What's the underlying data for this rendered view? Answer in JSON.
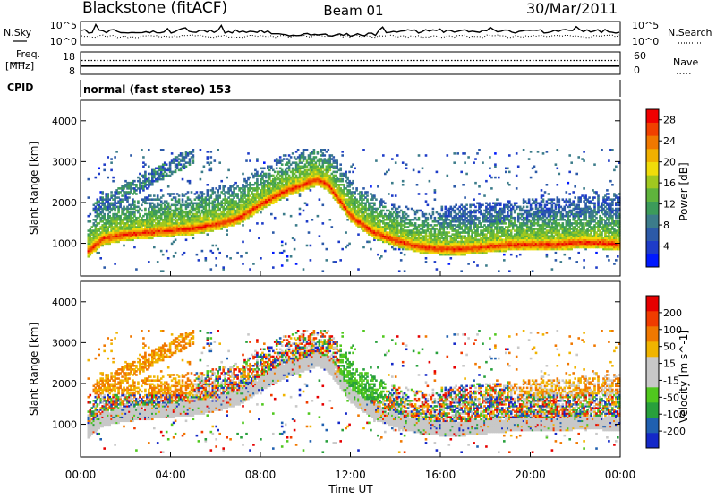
{
  "header": {
    "station": "Blackstone (fitACF)",
    "beam": "Beam 01",
    "date": "30/Mar/2011"
  },
  "noise_panel": {
    "left_label": "N.Sky",
    "right_label": "N.Search",
    "ticks": [
      "10^5",
      "10^0"
    ]
  },
  "freq_panel": {
    "left_label_1": "Freq.",
    "left_label_2": "[MHz]",
    "left_ticks": [
      "18",
      "8"
    ],
    "right_label": "Nave",
    "right_ticks": [
      "60",
      "0"
    ]
  },
  "cpid": {
    "label": "CPID",
    "value": "normal (fast stereo) 153"
  },
  "colors": {
    "power": [
      "#0019ff",
      "#1e3cc8",
      "#2c5aa8",
      "#3c7c8a",
      "#3c9b5a",
      "#5fb43c",
      "#a0c820",
      "#f0dc0a",
      "#f0b000",
      "#f07800",
      "#f04000",
      "#f00000"
    ],
    "velocity": [
      "#e60000",
      "#f03c00",
      "#f07800",
      "#f0b400",
      "#c8c8c8",
      "#c8c8c8",
      "#50c81e",
      "#28a03c",
      "#2060b0",
      "#1428c8"
    ]
  },
  "chart_data": [
    {
      "type": "heatmap",
      "title": "",
      "xlabel": "Time UT",
      "ylabel": "Slant Range [km]",
      "xlim": [
        "00:00",
        "24:00"
      ],
      "ylim": [
        200,
        4500
      ],
      "x_ticks": [
        "00:00",
        "04:00",
        "08:00",
        "12:00",
        "16:00",
        "20:00",
        "00:00"
      ],
      "y_ticks": [
        1000,
        2000,
        3000,
        4000
      ],
      "colorbar": {
        "label": "Power [dB]",
        "ticks": [
          4,
          8,
          12,
          16,
          20,
          24,
          28
        ],
        "range": [
          0,
          30
        ]
      },
      "backscatter_bands": [
        {
          "name": "",
          "x": [
            0.3,
            1,
            2,
            3,
            4,
            5,
            6,
            7,
            8,
            9,
            10,
            10.5,
            11,
            12,
            13,
            14,
            15,
            16,
            17,
            18,
            19,
            20,
            21,
            22,
            23,
            24
          ],
          "y": [
            800,
            1100,
            1200,
            1250,
            1300,
            1350,
            1450,
            1600,
            1950,
            2250,
            2450,
            2550,
            2400,
            1650,
            1250,
            1050,
            900,
            850,
            850,
            900,
            950,
            950,
            950,
            1000,
            1000,
            950
          ]
        }
      ]
    },
    {
      "type": "heatmap",
      "title": "",
      "xlabel": "Time UT",
      "ylabel": "Slant Range [km]",
      "xlim": [
        "00:00",
        "24:00"
      ],
      "ylim": [
        200,
        4500
      ],
      "x_ticks": [
        "00:00",
        "04:00",
        "08:00",
        "12:00",
        "16:00",
        "20:00",
        "00:00"
      ],
      "y_ticks": [
        1000,
        2000,
        3000,
        4000
      ],
      "colorbar": {
        "label": "Velocity [m s^-1]",
        "ticks": [
          200,
          100,
          50,
          15,
          -15,
          -50,
          -100,
          -200
        ]
      }
    }
  ]
}
